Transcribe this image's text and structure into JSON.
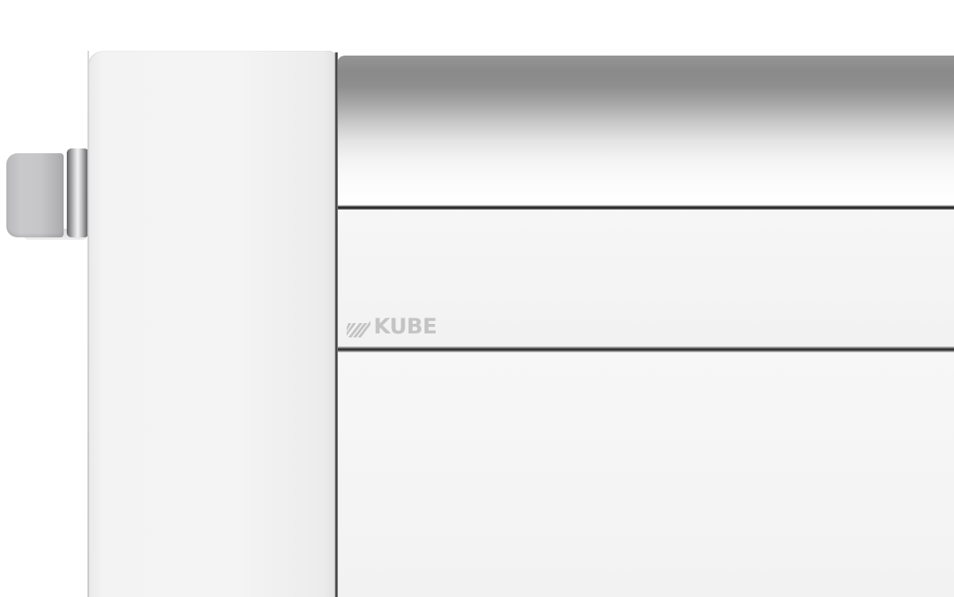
{
  "brand": {
    "name": "KUBE",
    "color": "#c4c4c5"
  },
  "icons": {
    "logo_mark": "diagonal-stripes-icon"
  }
}
